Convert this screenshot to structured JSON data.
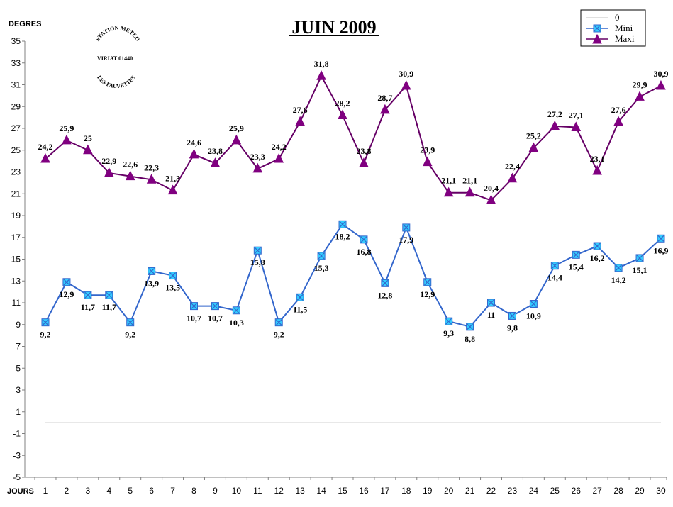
{
  "chart_data": {
    "type": "line",
    "title": "JUIN 2009",
    "ylabel": "DEGRES",
    "xlabel": "JOURS",
    "ylim": [
      -5,
      35
    ],
    "yticks": [
      -5,
      -3,
      -1,
      1,
      3,
      5,
      7,
      9,
      11,
      13,
      15,
      17,
      19,
      21,
      23,
      25,
      27,
      29,
      31,
      33,
      35
    ],
    "x": [
      1,
      2,
      3,
      4,
      5,
      6,
      7,
      8,
      9,
      10,
      11,
      12,
      13,
      14,
      15,
      16,
      17,
      18,
      19,
      20,
      21,
      22,
      23,
      24,
      25,
      26,
      27,
      28,
      29,
      30
    ],
    "grid": false,
    "legend_position": "top-right",
    "series": [
      {
        "name": "0",
        "color": "#c0c0c0",
        "marker": "none",
        "values": [
          0,
          0,
          0,
          0,
          0,
          0,
          0,
          0,
          0,
          0,
          0,
          0,
          0,
          0,
          0,
          0,
          0,
          0,
          0,
          0,
          0,
          0,
          0,
          0,
          0,
          0,
          0,
          0,
          0,
          0
        ]
      },
      {
        "name": "Mini",
        "color": "#3366cc",
        "marker_color": "#33ccff",
        "marker": "square-x",
        "values": [
          9.2,
          12.9,
          11.7,
          11.7,
          9.2,
          13.9,
          13.5,
          10.7,
          10.7,
          10.3,
          15.8,
          9.2,
          11.5,
          15.3,
          18.2,
          16.8,
          12.8,
          17.9,
          12.9,
          9.3,
          8.8,
          11,
          9.8,
          10.9,
          14.4,
          15.4,
          16.2,
          14.2,
          15.1,
          16.9
        ],
        "labels": [
          "9,2",
          "12,9",
          "11,7",
          "11,7",
          "9,2",
          "13,9",
          "13,5",
          "10,7",
          "10,7",
          "10,3",
          "15,8",
          "9,2",
          "11,5",
          "15,3",
          "18,2",
          "16,8",
          "12,8",
          "17,9",
          "12,9",
          "9,3",
          "8,8",
          "11",
          "9,8",
          "10,9",
          "14,4",
          "15,4",
          "16,2",
          "14,2",
          "15,1",
          "16,9"
        ]
      },
      {
        "name": "Maxi",
        "color": "#660066",
        "marker_color": "#800080",
        "marker": "triangle",
        "values": [
          24.2,
          25.9,
          25,
          22.9,
          22.6,
          22.3,
          21.3,
          24.6,
          23.8,
          25.9,
          23.3,
          24.2,
          27.6,
          31.8,
          28.2,
          23.8,
          28.7,
          30.9,
          23.9,
          21.1,
          21.1,
          20.4,
          22.4,
          25.2,
          27.2,
          27.1,
          23.1,
          27.6,
          29.9,
          30.9
        ],
        "labels": [
          "24,2",
          "25,9",
          "25",
          "22,9",
          "22,6",
          "22,3",
          "21,3",
          "24,6",
          "23,8",
          "25,9",
          "23,3",
          "24,2",
          "27,6",
          "31,8",
          "28,2",
          "23,8",
          "28,7",
          "30,9",
          "23,9",
          "21,1",
          "21,1",
          "20,4",
          "22,4",
          "25,2",
          "27,2",
          "27,1",
          "23,1",
          "27,6",
          "29,9",
          "30,9"
        ]
      }
    ]
  },
  "stamp": {
    "line1": "STATION METEO",
    "line2": "VIRIAT 01440",
    "line3": "LES FAUVETTES"
  }
}
